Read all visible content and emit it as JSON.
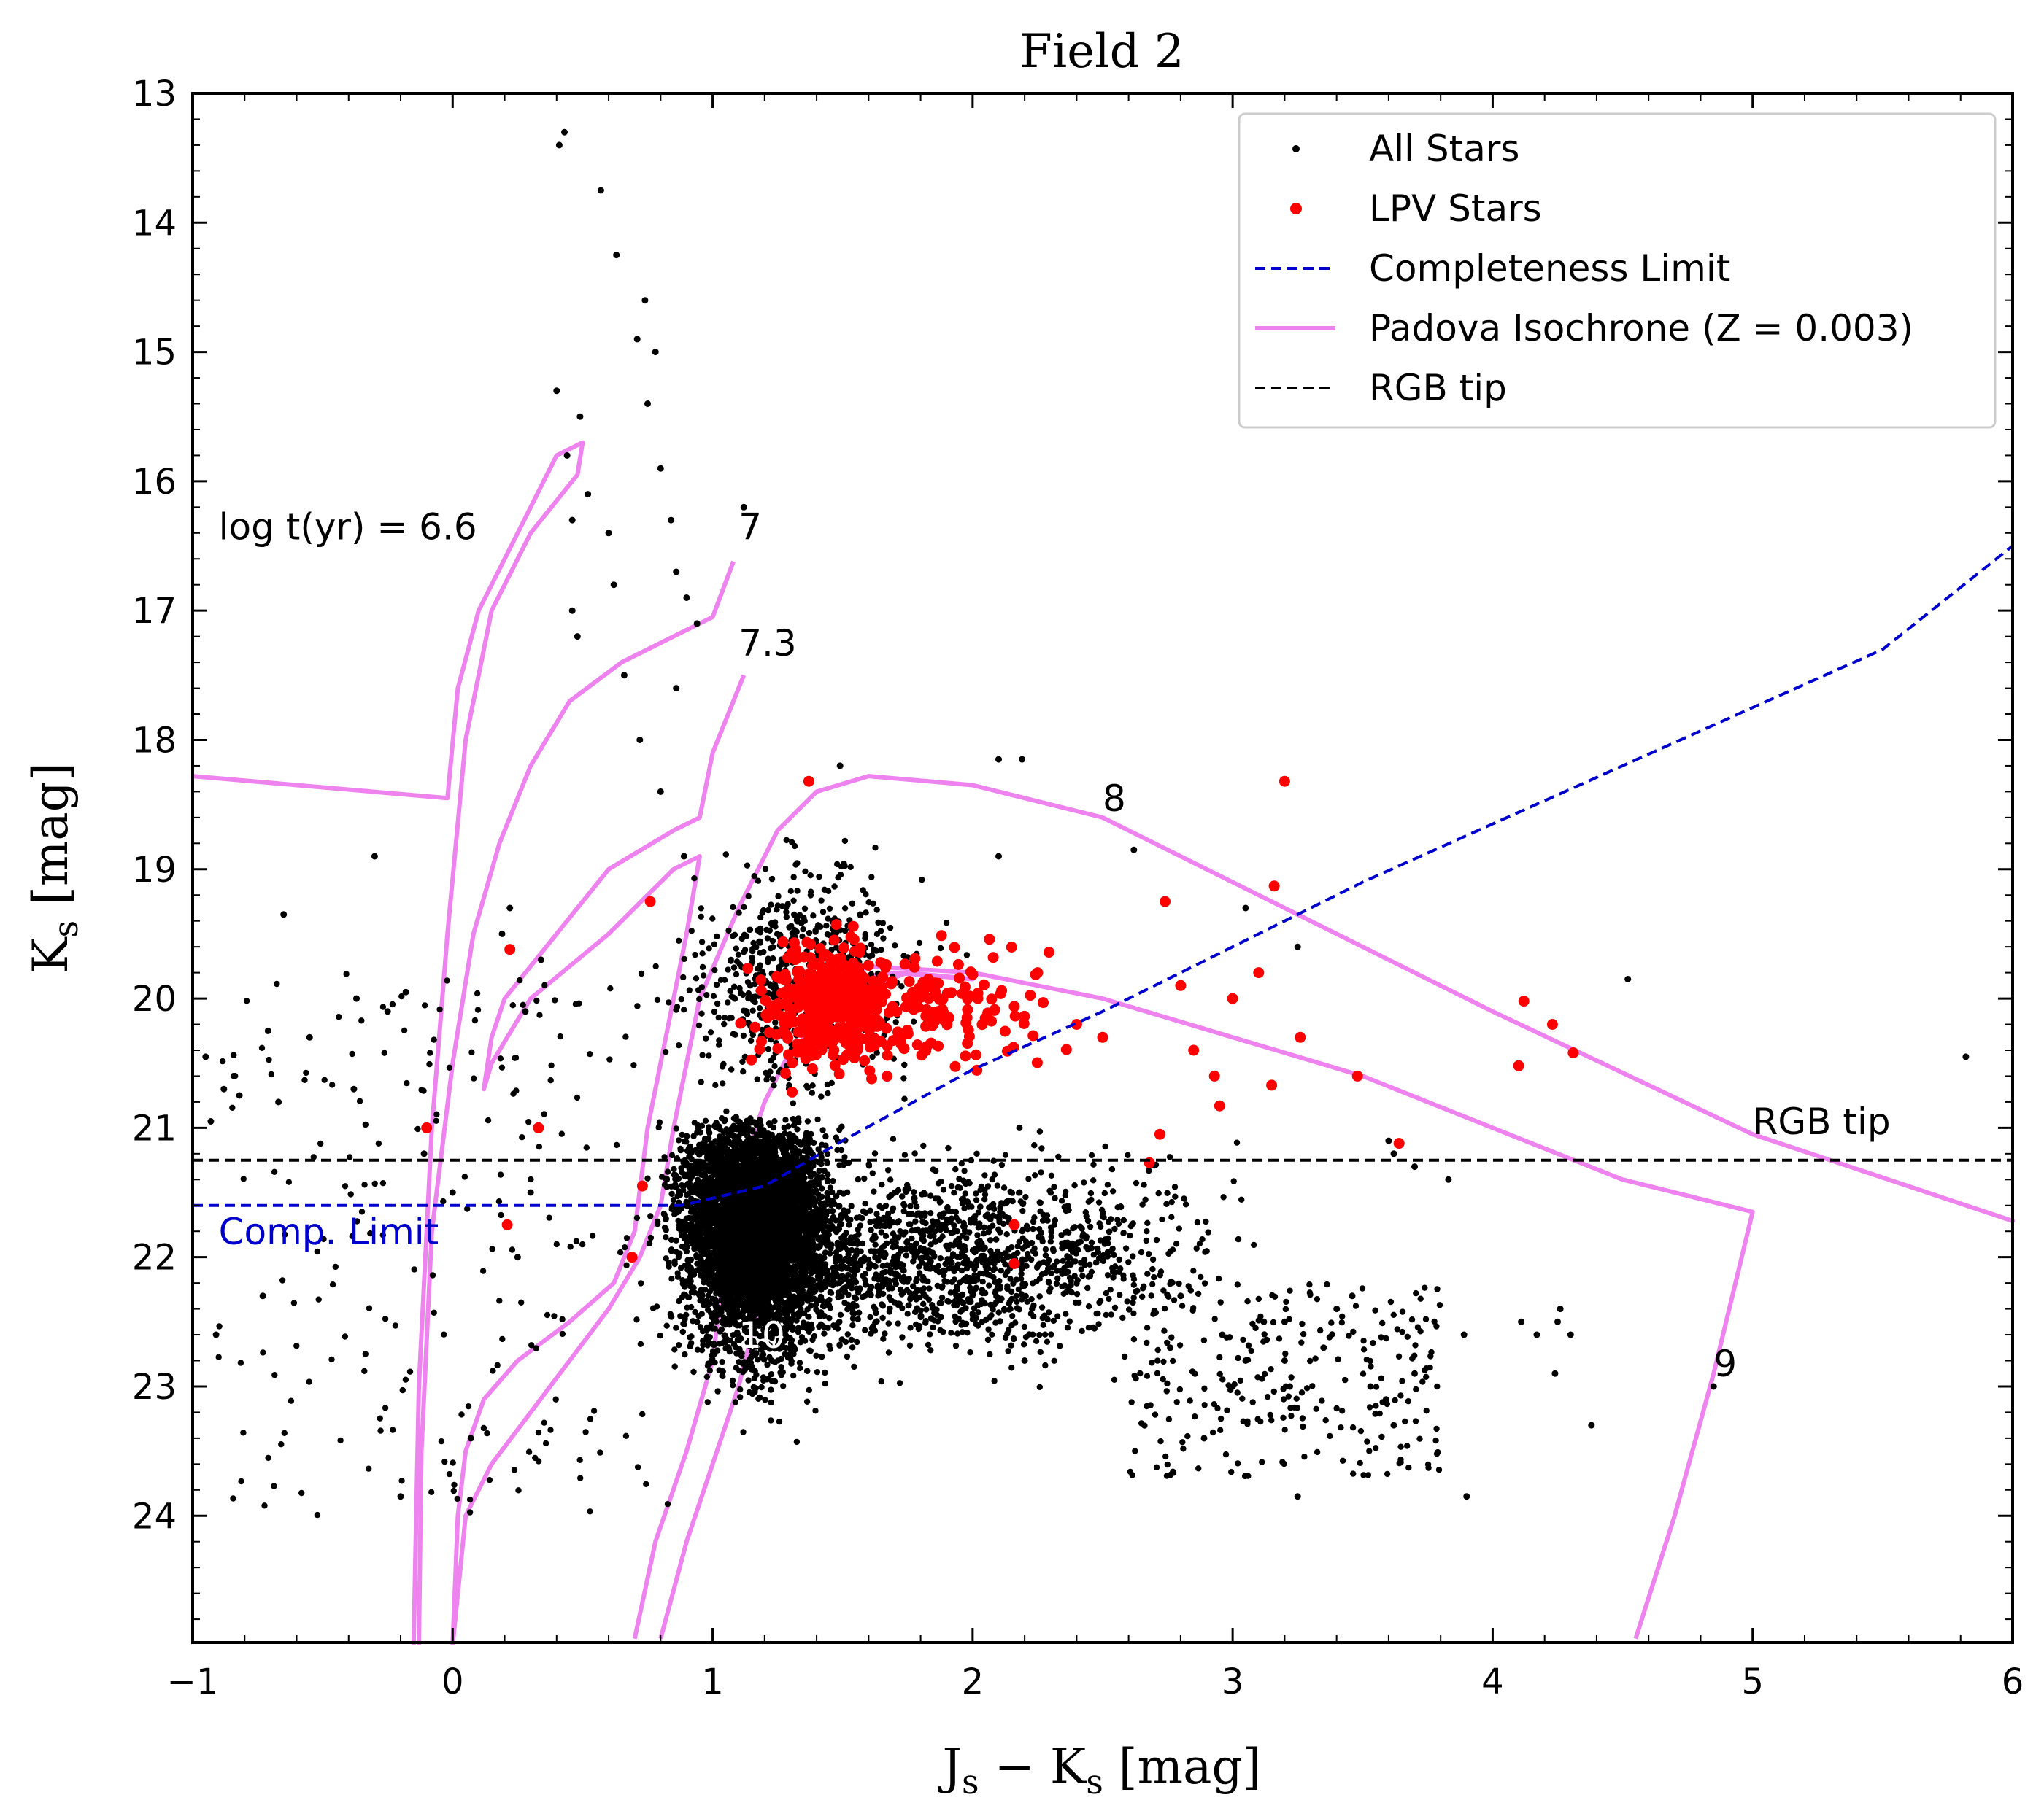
{
  "chart_data": {
    "type": "scatter",
    "title": "Field 2",
    "xlabel": "J",
    "xlabel_sub": "s",
    "xlabel_mid": " − K",
    "xlabel_sub2": "s",
    "xlabel_tail": " [mag]",
    "ylabel": "K",
    "ylabel_sub": "s",
    "ylabel_tail": " [mag]",
    "xlim": [
      -1,
      6
    ],
    "ylim": [
      13,
      25
    ],
    "y_inverted": true,
    "x_ticks": [
      -1,
      0,
      1,
      2,
      3,
      4,
      5,
      6
    ],
    "x_tick_labels": [
      "−1",
      "0",
      "1",
      "2",
      "3",
      "4",
      "5",
      "6"
    ],
    "y_ticks": [
      13,
      14,
      15,
      16,
      17,
      18,
      19,
      20,
      21,
      22,
      23,
      24
    ],
    "y_tick_labels": [
      "13",
      "14",
      "15",
      "16",
      "17",
      "18",
      "19",
      "20",
      "21",
      "22",
      "23",
      "24"
    ],
    "grid": false,
    "legend_position": "top-right",
    "colors": {
      "all_stars": "#000000",
      "lpv": "#ff0000",
      "completeness": "#0000cc",
      "isochrone": "#ee82ee",
      "rgb_tip": "#000000"
    },
    "legend": [
      {
        "label": "All Stars",
        "marker": "dot-small",
        "color": "#000000"
      },
      {
        "label": "LPV Stars",
        "marker": "dot-large",
        "color": "#ff0000"
      },
      {
        "label": "Completeness Limit",
        "marker": "dashed",
        "color": "#0000cc"
      },
      {
        "label": "Padova Isochrone (Z = 0.003)",
        "marker": "solid",
        "color": "#ee82ee"
      },
      {
        "label": "RGB tip",
        "marker": "dashed",
        "color": "#000000"
      }
    ],
    "rgb_tip": {
      "y": 21.25,
      "label": "RGB tip",
      "label_x": 5.0,
      "label_y": 21.05
    },
    "completeness_limit": {
      "label": "Comp. Limit",
      "label_x": -0.9,
      "label_y": 21.9,
      "points": [
        [
          -1,
          21.6
        ],
        [
          0.88,
          21.6
        ],
        [
          1.2,
          21.45
        ],
        [
          1.5,
          21.1
        ],
        [
          2.0,
          20.55
        ],
        [
          2.5,
          20.1
        ],
        [
          3.0,
          19.6
        ],
        [
          3.5,
          19.1
        ],
        [
          4.0,
          18.65
        ],
        [
          4.5,
          18.2
        ],
        [
          5.0,
          17.75
        ],
        [
          5.5,
          17.3
        ],
        [
          6.0,
          16.5
        ]
      ]
    },
    "isochrones": [
      {
        "label": "log t(yr) = 6.6",
        "label_x": -0.9,
        "label_y": 16.45,
        "points": [
          [
            -1,
            18.28
          ],
          [
            -0.02,
            18.45
          ],
          [
            0.02,
            17.6
          ],
          [
            0.1,
            17.0
          ],
          [
            0.25,
            16.4
          ],
          [
            0.4,
            15.8
          ],
          [
            0.5,
            15.7
          ],
          [
            0.48,
            15.95
          ],
          [
            0.3,
            16.4
          ],
          [
            0.15,
            17.0
          ],
          [
            0.05,
            18.0
          ],
          [
            -0.02,
            19.5
          ],
          [
            -0.08,
            21.0
          ],
          [
            -0.13,
            23.0
          ],
          [
            -0.15,
            25.0
          ]
        ]
      },
      {
        "label": "7",
        "label_x": 1.1,
        "label_y": 16.45,
        "points": [
          [
            1.08,
            16.62
          ],
          [
            1.0,
            17.05
          ],
          [
            0.85,
            17.2
          ],
          [
            0.65,
            17.4
          ],
          [
            0.45,
            17.7
          ],
          [
            0.3,
            18.2
          ],
          [
            0.18,
            18.8
          ],
          [
            0.08,
            19.5
          ],
          [
            0.0,
            20.5
          ],
          [
            -0.08,
            21.8
          ],
          [
            -0.12,
            23.5
          ],
          [
            -0.13,
            25.0
          ]
        ]
      },
      {
        "label": "7.3",
        "label_x": 1.1,
        "label_y": 17.35,
        "points": [
          [
            1.12,
            17.5
          ],
          [
            1.0,
            18.1
          ],
          [
            0.95,
            18.6
          ],
          [
            0.85,
            18.7
          ],
          [
            0.6,
            19.0
          ],
          [
            0.4,
            19.5
          ],
          [
            0.2,
            20.0
          ],
          [
            0.15,
            20.3
          ],
          [
            0.12,
            20.7
          ],
          [
            0.15,
            20.5
          ],
          [
            0.3,
            20.0
          ],
          [
            0.6,
            19.5
          ],
          [
            0.85,
            19.0
          ],
          [
            0.95,
            18.9
          ],
          [
            0.9,
            19.5
          ],
          [
            0.82,
            20.3
          ],
          [
            0.75,
            21.0
          ],
          [
            0.7,
            21.8
          ],
          [
            0.62,
            22.2
          ],
          [
            0.45,
            22.5
          ],
          [
            0.25,
            22.8
          ],
          [
            0.12,
            23.1
          ],
          [
            0.05,
            23.5
          ],
          [
            0.02,
            24.0
          ],
          [
            0.0,
            25.0
          ]
        ]
      },
      {
        "label": "8",
        "label_x": 2.5,
        "label_y": 18.55,
        "points": [
          [
            2.5,
            18.6
          ],
          [
            3.0,
            19.1
          ],
          [
            4.0,
            20.1
          ],
          [
            5.0,
            21.05
          ],
          [
            6.0,
            21.72
          ],
          [
            5.0,
            21.05
          ],
          [
            4.0,
            20.1
          ],
          [
            3.0,
            19.1
          ],
          [
            2.5,
            18.6
          ],
          [
            2.0,
            18.35
          ],
          [
            1.6,
            18.28
          ],
          [
            1.4,
            18.4
          ],
          [
            1.25,
            18.7
          ],
          [
            1.1,
            19.3
          ],
          [
            0.95,
            20.0
          ],
          [
            0.85,
            21.0
          ],
          [
            0.8,
            21.6
          ],
          [
            0.72,
            22.0
          ],
          [
            0.6,
            22.4
          ],
          [
            0.45,
            22.8
          ],
          [
            0.3,
            23.2
          ],
          [
            0.15,
            23.6
          ],
          [
            0.05,
            24.0
          ],
          [
            0.0,
            25.0
          ]
        ]
      },
      {
        "label": "9",
        "label_x": 4.85,
        "label_y": 22.92,
        "points": [
          [
            4.55,
            24.95
          ],
          [
            4.7,
            24.0
          ],
          [
            4.85,
            22.9
          ],
          [
            5.0,
            21.65
          ],
          [
            4.5,
            21.4
          ],
          [
            3.5,
            20.6
          ],
          [
            2.5,
            20.0
          ],
          [
            2.0,
            19.8
          ],
          [
            1.6,
            19.75
          ],
          [
            1.5,
            19.85
          ],
          [
            1.7,
            19.8
          ],
          [
            2.0,
            19.85
          ],
          [
            1.75,
            19.8
          ],
          [
            1.55,
            19.95
          ],
          [
            1.3,
            20.4
          ],
          [
            1.2,
            20.8
          ],
          [
            1.1,
            21.4
          ],
          [
            1.05,
            22.0
          ],
          [
            1.0,
            22.8
          ],
          [
            0.9,
            23.5
          ],
          [
            0.78,
            24.2
          ],
          [
            0.7,
            24.95
          ]
        ]
      },
      {
        "label": "10",
        "label_x": 1.1,
        "label_y": 22.7,
        "points": [
          [
            1.25,
            21.5
          ],
          [
            1.22,
            22.0
          ],
          [
            1.15,
            22.6
          ],
          [
            1.1,
            23.0
          ],
          [
            1.0,
            23.6
          ],
          [
            0.9,
            24.2
          ],
          [
            0.8,
            24.95
          ]
        ]
      }
    ],
    "series": [
      {
        "name": "All Stars",
        "values_note_free": true,
        "x": [
          0.41,
          0.43,
          0.57,
          0.63,
          0.71,
          0.74,
          0.75,
          0.78,
          0.8,
          0.84,
          0.9,
          0.86,
          0.94,
          1.12,
          1.49,
          2.1,
          2.1,
          0.46,
          0.46,
          0.48,
          0.44,
          0.4,
          0.49,
          0.52,
          0.6,
          0.62,
          0.66,
          0.72,
          0.86,
          0.8,
          0.89,
          -0.3,
          -0.65,
          0.22,
          0.19,
          0.34,
          0.28,
          2.19,
          2.62,
          3.05,
          3.25,
          4.52,
          4.85,
          5.82,
          4.25,
          3.9,
          3.89,
          3.83,
          3.62,
          3.6,
          3.7,
          2.18,
          2.8,
          3.2,
          3.25,
          2.89,
          3.4,
          2.76,
          3.46,
          3.0,
          4.11,
          4.17,
          4.26,
          4.24,
          4.3,
          4.38,
          3.59,
          3.62,
          3.7,
          3.12,
          3.05,
          3.22,
          3.2,
          3.53,
          3.35,
          2.96,
          2.2,
          2.18,
          0.0,
          -0.37,
          -0.55,
          -0.88,
          -0.71,
          -0.82,
          -0.95,
          -0.93,
          -0.18,
          -0.25,
          -0.67,
          -0.38,
          -0.11,
          -0.73,
          -0.91,
          -0.2,
          0.07,
          0.3,
          0.25
        ],
        "y": [
          13.4,
          13.3,
          13.75,
          14.25,
          14.9,
          14.6,
          15.4,
          15.0,
          15.9,
          16.3,
          16.9,
          16.7,
          17.1,
          16.2,
          18.2,
          18.15,
          18.9,
          16.3,
          17.0,
          17.2,
          15.8,
          15.3,
          15.5,
          16.1,
          16.4,
          16.8,
          17.5,
          18.0,
          17.6,
          18.4,
          18.9,
          18.9,
          19.35,
          19.3,
          19.5,
          19.7,
          20.1,
          18.15,
          18.85,
          19.3,
          19.6,
          19.85,
          23.0,
          20.45,
          22.5,
          23.85,
          22.6,
          21.4,
          21.2,
          21.1,
          21.3,
          21.0,
          22.3,
          22.8,
          23.85,
          23.4,
          22.4,
          22.7,
          22.3,
          23.0,
          22.5,
          22.6,
          22.4,
          22.9,
          22.6,
          23.3,
          23.1,
          23.3,
          22.9,
          22.5,
          22.8,
          23.0,
          22.5,
          23.0,
          22.7,
          22.6,
          22.8,
          21.5,
          21.5,
          20.0,
          20.3,
          20.7,
          20.25,
          20.75,
          20.45,
          20.95,
          19.95,
          20.1,
          20.8,
          20.7,
          21.2,
          22.3,
          22.6,
          23.85,
          23.4,
          21.5,
          22.0
        ]
      },
      {
        "name": "LPV Stars",
        "x": [
          1.37,
          3.2,
          3.16,
          2.74,
          4.12,
          4.23,
          4.31,
          4.1,
          3.48,
          3.64,
          3.15,
          2.68,
          2.95,
          2.72,
          0.22,
          0.33,
          -0.1,
          0.21,
          0.73,
          0.76,
          0.69,
          2.16,
          2.16,
          2.02,
          1.83,
          2.4,
          2.25,
          2.85,
          3.0,
          3.1,
          3.26,
          2.8,
          2.5,
          2.93
        ],
        "y": [
          18.32,
          18.32,
          19.13,
          19.25,
          20.02,
          20.2,
          20.42,
          20.52,
          20.6,
          21.12,
          20.67,
          21.27,
          20.83,
          21.05,
          19.62,
          21.0,
          21.0,
          21.75,
          21.45,
          19.25,
          22.0,
          21.75,
          22.05,
          20.0,
          19.85,
          20.2,
          19.8,
          20.4,
          20.0,
          19.8,
          20.3,
          19.9,
          20.3,
          20.6
        ]
      }
    ],
    "annotations": [
      {
        "text": "log t(yr) = 6.6",
        "x": -0.9,
        "y": 16.45
      },
      {
        "text": "7",
        "x": 1.1,
        "y": 16.45
      },
      {
        "text": "7.3",
        "x": 1.1,
        "y": 17.35
      },
      {
        "text": "8",
        "x": 2.5,
        "y": 18.55
      },
      {
        "text": "9",
        "x": 4.85,
        "y": 22.92
      },
      {
        "text": "10",
        "x": 1.1,
        "y": 22.7
      },
      {
        "text": "RGB tip",
        "x": 5.0,
        "y": 21.05
      },
      {
        "text": "Comp. Limit",
        "x": -0.9,
        "y": 21.9
      }
    ]
  }
}
